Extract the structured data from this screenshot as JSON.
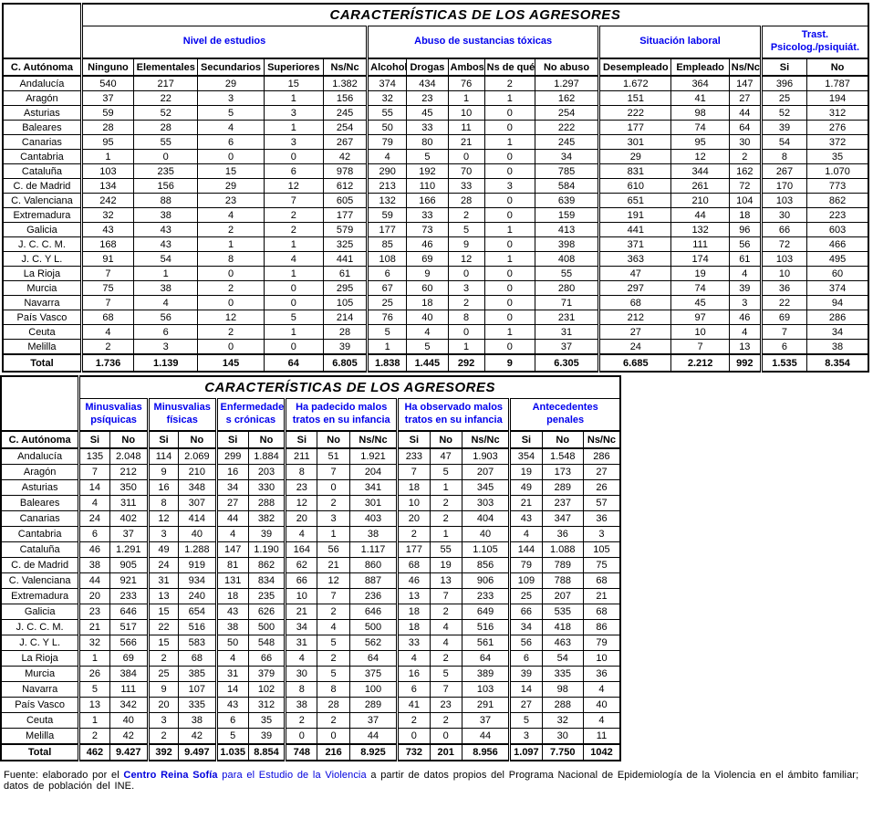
{
  "table1": {
    "title": "CARACTERÍSTICAS DE LOS AGRESORES",
    "row_header": "C. Autónoma",
    "groups": [
      {
        "label": "Nivel de estudios",
        "columns": [
          "Ninguno",
          "Elementales",
          "Secundarios",
          "Superiores",
          "Ns/Nc"
        ]
      },
      {
        "label": "Abuso de sustancias tóxicas",
        "columns": [
          "Alcohol",
          "Drogas",
          "Ambos",
          "Ns de qué",
          "No abuso"
        ]
      },
      {
        "label": "Situación laboral",
        "columns": [
          "Desempleado",
          "Empleado",
          "Ns/Nc"
        ]
      },
      {
        "label": "Trast. Psicolog./psiquiát.",
        "columns": [
          "Si",
          "No"
        ]
      }
    ],
    "rows": [
      {
        "name": "Andalucía",
        "values": [
          "540",
          "217",
          "29",
          "15",
          "1.382",
          "374",
          "434",
          "76",
          "2",
          "1.297",
          "1.672",
          "364",
          "147",
          "396",
          "1.787"
        ]
      },
      {
        "name": "Aragón",
        "values": [
          "37",
          "22",
          "3",
          "1",
          "156",
          "32",
          "23",
          "1",
          "1",
          "162",
          "151",
          "41",
          "27",
          "25",
          "194"
        ]
      },
      {
        "name": "Asturias",
        "values": [
          "59",
          "52",
          "5",
          "3",
          "245",
          "55",
          "45",
          "10",
          "0",
          "254",
          "222",
          "98",
          "44",
          "52",
          "312"
        ]
      },
      {
        "name": "Baleares",
        "values": [
          "28",
          "28",
          "4",
          "1",
          "254",
          "50",
          "33",
          "11",
          "0",
          "222",
          "177",
          "74",
          "64",
          "39",
          "276"
        ]
      },
      {
        "name": "Canarias",
        "values": [
          "95",
          "55",
          "6",
          "3",
          "267",
          "79",
          "80",
          "21",
          "1",
          "245",
          "301",
          "95",
          "30",
          "54",
          "372"
        ]
      },
      {
        "name": "Cantabria",
        "values": [
          "1",
          "0",
          "0",
          "0",
          "42",
          "4",
          "5",
          "0",
          "0",
          "34",
          "29",
          "12",
          "2",
          "8",
          "35"
        ]
      },
      {
        "name": "Cataluña",
        "values": [
          "103",
          "235",
          "15",
          "6",
          "978",
          "290",
          "192",
          "70",
          "0",
          "785",
          "831",
          "344",
          "162",
          "267",
          "1.070"
        ]
      },
      {
        "name": "C. de Madrid",
        "values": [
          "134",
          "156",
          "29",
          "12",
          "612",
          "213",
          "110",
          "33",
          "3",
          "584",
          "610",
          "261",
          "72",
          "170",
          "773"
        ]
      },
      {
        "name": "C. Valenciana",
        "values": [
          "242",
          "88",
          "23",
          "7",
          "605",
          "132",
          "166",
          "28",
          "0",
          "639",
          "651",
          "210",
          "104",
          "103",
          "862"
        ]
      },
      {
        "name": "Extremadura",
        "values": [
          "32",
          "38",
          "4",
          "2",
          "177",
          "59",
          "33",
          "2",
          "0",
          "159",
          "191",
          "44",
          "18",
          "30",
          "223"
        ]
      },
      {
        "name": "Galicia",
        "values": [
          "43",
          "43",
          "2",
          "2",
          "579",
          "177",
          "73",
          "5",
          "1",
          "413",
          "441",
          "132",
          "96",
          "66",
          "603"
        ]
      },
      {
        "name": "J. C. C. M.",
        "values": [
          "168",
          "43",
          "1",
          "1",
          "325",
          "85",
          "46",
          "9",
          "0",
          "398",
          "371",
          "111",
          "56",
          "72",
          "466"
        ]
      },
      {
        "name": "J. C. Y L.",
        "values": [
          "91",
          "54",
          "8",
          "4",
          "441",
          "108",
          "69",
          "12",
          "1",
          "408",
          "363",
          "174",
          "61",
          "103",
          "495"
        ]
      },
      {
        "name": "La Rioja",
        "values": [
          "7",
          "1",
          "0",
          "1",
          "61",
          "6",
          "9",
          "0",
          "0",
          "55",
          "47",
          "19",
          "4",
          "10",
          "60"
        ]
      },
      {
        "name": "Murcia",
        "values": [
          "75",
          "38",
          "2",
          "0",
          "295",
          "67",
          "60",
          "3",
          "0",
          "280",
          "297",
          "74",
          "39",
          "36",
          "374"
        ]
      },
      {
        "name": "Navarra",
        "values": [
          "7",
          "4",
          "0",
          "0",
          "105",
          "25",
          "18",
          "2",
          "0",
          "71",
          "68",
          "45",
          "3",
          "22",
          "94"
        ]
      },
      {
        "name": "País Vasco",
        "values": [
          "68",
          "56",
          "12",
          "5",
          "214",
          "76",
          "40",
          "8",
          "0",
          "231",
          "212",
          "97",
          "46",
          "69",
          "286"
        ]
      },
      {
        "name": "Ceuta",
        "values": [
          "4",
          "6",
          "2",
          "1",
          "28",
          "5",
          "4",
          "0",
          "1",
          "31",
          "27",
          "10",
          "4",
          "7",
          "34"
        ]
      },
      {
        "name": "Melilla",
        "values": [
          "2",
          "3",
          "0",
          "0",
          "39",
          "1",
          "5",
          "1",
          "0",
          "37",
          "24",
          "7",
          "13",
          "6",
          "38"
        ]
      }
    ],
    "total": {
      "name": "Total",
      "values": [
        "1.736",
        "1.139",
        "145",
        "64",
        "6.805",
        "1.838",
        "1.445",
        "292",
        "9",
        "6.305",
        "6.685",
        "2.212",
        "992",
        "1.535",
        "8.354"
      ]
    }
  },
  "table2": {
    "title": "CARACTERÍSTICAS DE LOS AGRESORES",
    "row_header": "C. Autónoma",
    "groups": [
      {
        "label": "Minusvalias psíquicas",
        "columns": [
          "Si",
          "No"
        ]
      },
      {
        "label": "Minusvalias físicas",
        "columns": [
          "Si",
          "No"
        ]
      },
      {
        "label": "Enfermedade s crónicas",
        "columns": [
          "Si",
          "No"
        ]
      },
      {
        "label": "Ha padecido malos tratos en su infancia",
        "columns": [
          "Si",
          "No",
          "Ns/Nc"
        ]
      },
      {
        "label": "Ha observado malos tratos en su infancia",
        "columns": [
          "Si",
          "No",
          "Ns/Nc"
        ]
      },
      {
        "label": "Antecedentes penales",
        "columns": [
          "Si",
          "No",
          "Ns/Nc"
        ]
      }
    ],
    "rows": [
      {
        "name": "Andalucía",
        "values": [
          "135",
          "2.048",
          "114",
          "2.069",
          "299",
          "1.884",
          "211",
          "51",
          "1.921",
          "233",
          "47",
          "1.903",
          "354",
          "1.548",
          "286"
        ]
      },
      {
        "name": "Aragón",
        "values": [
          "7",
          "212",
          "9",
          "210",
          "16",
          "203",
          "8",
          "7",
          "204",
          "7",
          "5",
          "207",
          "19",
          "173",
          "27"
        ]
      },
      {
        "name": "Asturias",
        "values": [
          "14",
          "350",
          "16",
          "348",
          "34",
          "330",
          "23",
          "0",
          "341",
          "18",
          "1",
          "345",
          "49",
          "289",
          "26"
        ]
      },
      {
        "name": "Baleares",
        "values": [
          "4",
          "311",
          "8",
          "307",
          "27",
          "288",
          "12",
          "2",
          "301",
          "10",
          "2",
          "303",
          "21",
          "237",
          "57"
        ]
      },
      {
        "name": "Canarias",
        "values": [
          "24",
          "402",
          "12",
          "414",
          "44",
          "382",
          "20",
          "3",
          "403",
          "20",
          "2",
          "404",
          "43",
          "347",
          "36"
        ]
      },
      {
        "name": "Cantabria",
        "values": [
          "6",
          "37",
          "3",
          "40",
          "4",
          "39",
          "4",
          "1",
          "38",
          "2",
          "1",
          "40",
          "4",
          "36",
          "3"
        ]
      },
      {
        "name": "Cataluña",
        "values": [
          "46",
          "1.291",
          "49",
          "1.288",
          "147",
          "1.190",
          "164",
          "56",
          "1.117",
          "177",
          "55",
          "1.105",
          "144",
          "1.088",
          "105"
        ]
      },
      {
        "name": "C. de Madrid",
        "values": [
          "38",
          "905",
          "24",
          "919",
          "81",
          "862",
          "62",
          "21",
          "860",
          "68",
          "19",
          "856",
          "79",
          "789",
          "75"
        ]
      },
      {
        "name": "C. Valenciana",
        "values": [
          "44",
          "921",
          "31",
          "934",
          "131",
          "834",
          "66",
          "12",
          "887",
          "46",
          "13",
          "906",
          "109",
          "788",
          "68"
        ]
      },
      {
        "name": "Extremadura",
        "values": [
          "20",
          "233",
          "13",
          "240",
          "18",
          "235",
          "10",
          "7",
          "236",
          "13",
          "7",
          "233",
          "25",
          "207",
          "21"
        ]
      },
      {
        "name": "Galicia",
        "values": [
          "23",
          "646",
          "15",
          "654",
          "43",
          "626",
          "21",
          "2",
          "646",
          "18",
          "2",
          "649",
          "66",
          "535",
          "68"
        ]
      },
      {
        "name": "J. C. C. M.",
        "values": [
          "21",
          "517",
          "22",
          "516",
          "38",
          "500",
          "34",
          "4",
          "500",
          "18",
          "4",
          "516",
          "34",
          "418",
          "86"
        ]
      },
      {
        "name": "J. C. Y L.",
        "values": [
          "32",
          "566",
          "15",
          "583",
          "50",
          "548",
          "31",
          "5",
          "562",
          "33",
          "4",
          "561",
          "56",
          "463",
          "79"
        ]
      },
      {
        "name": "La Rioja",
        "values": [
          "1",
          "69",
          "2",
          "68",
          "4",
          "66",
          "4",
          "2",
          "64",
          "4",
          "2",
          "64",
          "6",
          "54",
          "10"
        ]
      },
      {
        "name": "Murcia",
        "values": [
          "26",
          "384",
          "25",
          "385",
          "31",
          "379",
          "30",
          "5",
          "375",
          "16",
          "5",
          "389",
          "39",
          "335",
          "36"
        ]
      },
      {
        "name": "Navarra",
        "values": [
          "5",
          "111",
          "9",
          "107",
          "14",
          "102",
          "8",
          "8",
          "100",
          "6",
          "7",
          "103",
          "14",
          "98",
          "4"
        ]
      },
      {
        "name": "País Vasco",
        "values": [
          "13",
          "342",
          "20",
          "335",
          "43",
          "312",
          "38",
          "28",
          "289",
          "41",
          "23",
          "291",
          "27",
          "288",
          "40"
        ]
      },
      {
        "name": "Ceuta",
        "values": [
          "1",
          "40",
          "3",
          "38",
          "6",
          "35",
          "2",
          "2",
          "37",
          "2",
          "2",
          "37",
          "5",
          "32",
          "4"
        ]
      },
      {
        "name": "Melilla",
        "values": [
          "2",
          "42",
          "2",
          "42",
          "5",
          "39",
          "0",
          "0",
          "44",
          "0",
          "0",
          "44",
          "3",
          "30",
          "11"
        ]
      }
    ],
    "total": {
      "name": "Total",
      "values": [
        "462",
        "9.427",
        "392",
        "9.497",
        "1.035",
        "8.854",
        "748",
        "216",
        "8.925",
        "732",
        "201",
        "8.956",
        "1.097",
        "7.750",
        "1042"
      ]
    }
  },
  "footer": {
    "prefix": "Fuente: elaborado  por el ",
    "brand": "Centro Reina Sofía",
    "middle": " para el Estudio  de la Violencia ",
    "suffix": " a partir de datos propios  del Programa Nacional de Epidemiología  de la Violencia  en el ámbito  familiar; datos  de población  del INE."
  }
}
